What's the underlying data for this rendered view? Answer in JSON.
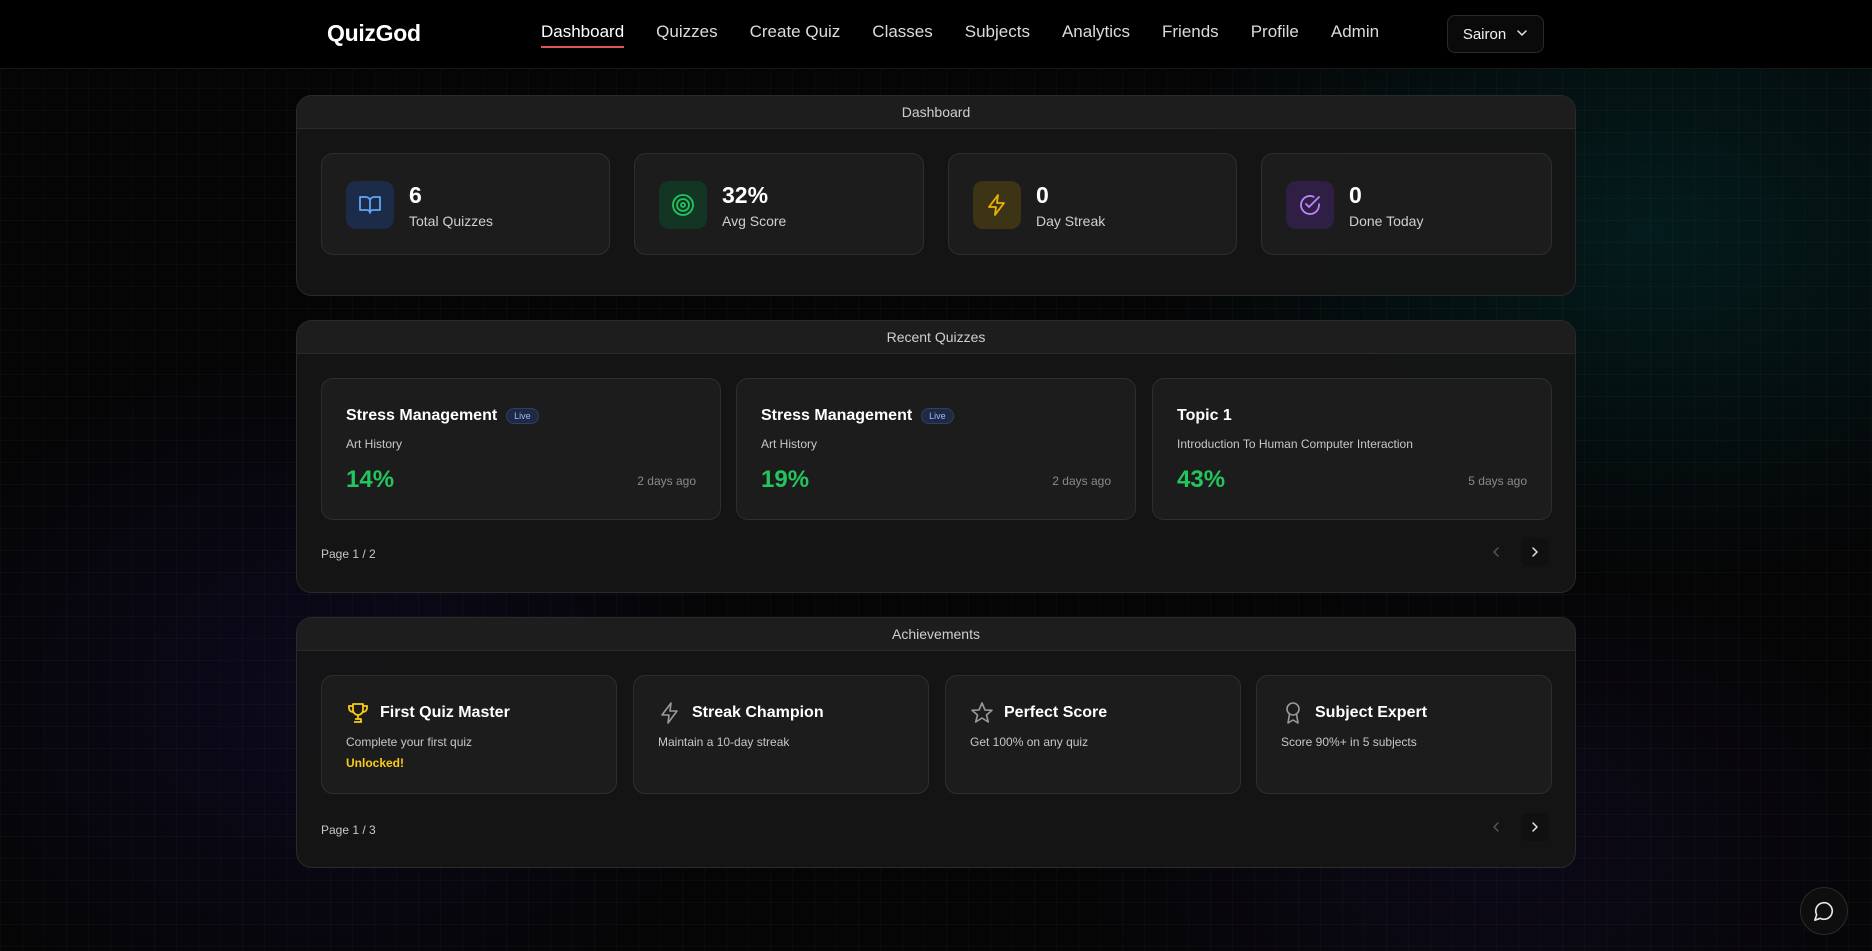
{
  "app": {
    "brand": "QuizGod"
  },
  "nav": {
    "links": [
      "Dashboard",
      "Quizzes",
      "Create Quiz",
      "Classes",
      "Subjects",
      "Analytics",
      "Friends",
      "Profile",
      "Admin"
    ],
    "active": "Dashboard",
    "user": "Sairon"
  },
  "dashboard": {
    "header": "Dashboard",
    "stats": [
      {
        "value": "6",
        "label": "Total Quizzes",
        "icon": "book-open-icon",
        "color": "#60a5fa"
      },
      {
        "value": "32%",
        "label": "Avg Score",
        "icon": "target-icon",
        "color": "#22c55e"
      },
      {
        "value": "0",
        "label": "Day Streak",
        "icon": "lightning-icon",
        "color": "#eab308"
      },
      {
        "value": "0",
        "label": "Done Today",
        "icon": "check-circle-icon",
        "color": "#c084fc"
      }
    ]
  },
  "recent": {
    "header": "Recent Quizzes",
    "items": [
      {
        "title": "Stress Management",
        "badge": "Live",
        "subject": "Art History",
        "score": "14%",
        "time": "2 days ago"
      },
      {
        "title": "Stress Management",
        "badge": "Live",
        "subject": "Art History",
        "score": "19%",
        "time": "2 days ago"
      },
      {
        "title": "Topic 1",
        "badge": "",
        "subject": "Introduction To Human Computer Interaction",
        "score": "43%",
        "time": "5 days ago"
      }
    ],
    "page": "Page 1 / 2"
  },
  "achievements": {
    "header": "Achievements",
    "items": [
      {
        "title": "First Quiz Master",
        "desc": "Complete your first quiz",
        "status": "Unlocked!",
        "icon": "trophy-icon"
      },
      {
        "title": "Streak Champion",
        "desc": "Maintain a 10-day streak",
        "status": "",
        "icon": "lightning-icon"
      },
      {
        "title": "Perfect Score",
        "desc": "Get 100% on any quiz",
        "status": "",
        "icon": "star-icon"
      },
      {
        "title": "Subject Expert",
        "desc": "Score 90%+ in 5 subjects",
        "status": "",
        "icon": "award-icon"
      }
    ],
    "page": "Page 1 / 3"
  },
  "colors": {
    "accent": "#e05656",
    "score": "#22c55e",
    "unlocked": "#facc15",
    "badge": "#9fb8ff"
  }
}
